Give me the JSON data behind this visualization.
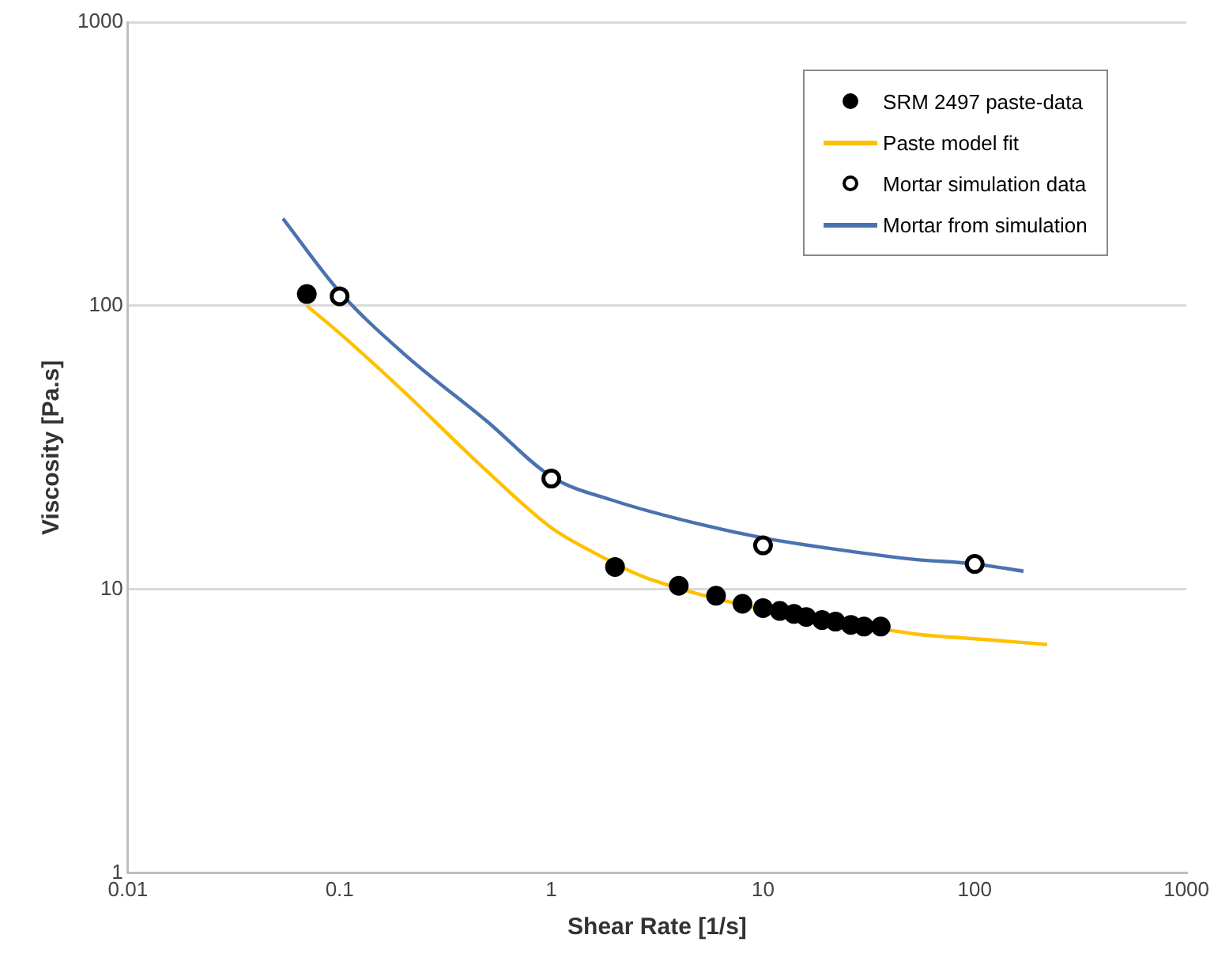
{
  "chart_data": {
    "type": "scatter",
    "xlabel": "Shear Rate [1/s]",
    "ylabel": "Viscosity [Pa.s]",
    "log": "xy",
    "xlim": [
      0.01,
      1000
    ],
    "xticks": [
      0.01,
      0.1,
      1,
      10,
      100,
      1000
    ],
    "ylim": [
      1,
      1000
    ],
    "yticks": [
      1,
      10,
      100,
      1000
    ],
    "grid": "y",
    "legend": "top right",
    "series": [
      {
        "name": "SRM 2497 paste-data",
        "marker": "circle",
        "color": "#000000",
        "x": [
          0.07,
          2,
          4,
          6,
          8,
          10,
          12,
          14,
          16,
          19,
          22,
          26,
          30,
          36
        ],
        "values": [
          110,
          12,
          10.3,
          9.5,
          8.9,
          8.6,
          8.4,
          8.2,
          8.0,
          7.8,
          7.7,
          7.5,
          7.4,
          7.4
        ]
      },
      {
        "name": "Paste model fit",
        "type": "line",
        "marker": "none",
        "color": "#ffc000",
        "x": [
          0.07,
          0.1,
          0.2,
          0.5,
          1,
          1.5,
          3,
          50,
          100,
          220
        ],
        "values": [
          100,
          80,
          50,
          26,
          16.5,
          13.8,
          10.8,
          7.0,
          6.7,
          6.4
        ]
      },
      {
        "name": "Mortar simulation data",
        "marker": "circle",
        "color": "#ffffff",
        "x": [
          0.1,
          1,
          10,
          100
        ],
        "values": [
          108,
          24.6,
          14.3,
          12.3
        ]
      },
      {
        "name": "Mortar from simulation",
        "type": "line",
        "marker": "none",
        "color": "#4a72b0",
        "x": [
          0.054,
          0.1,
          0.2,
          0.5,
          1,
          2,
          5,
          10,
          20,
          50,
          100,
          170
        ],
        "values": [
          203,
          112,
          68,
          39,
          25,
          20.5,
          17,
          15.2,
          14,
          12.8,
          12.3,
          11.6
        ]
      }
    ]
  }
}
